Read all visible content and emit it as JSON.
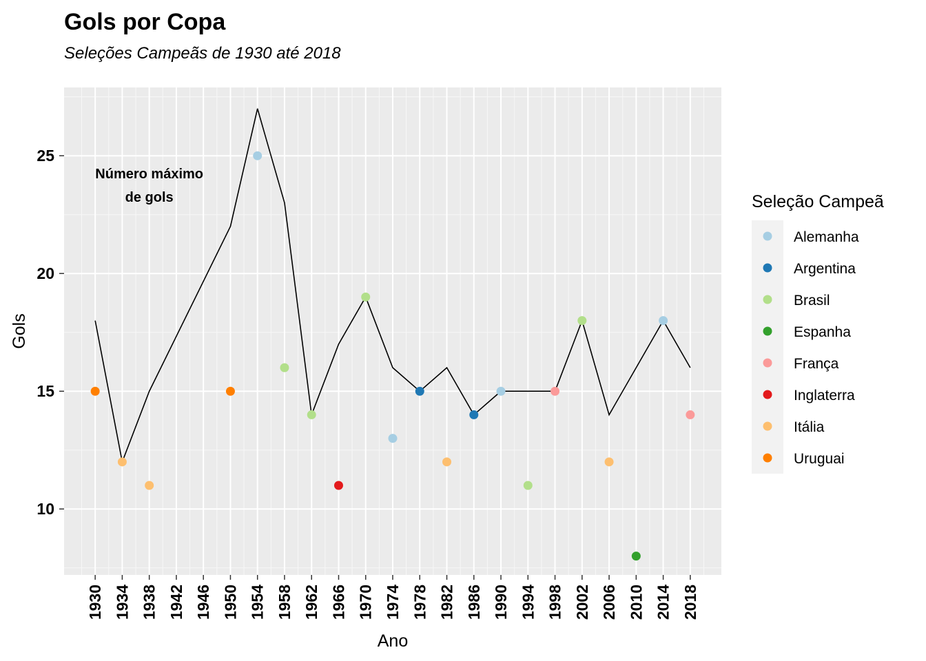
{
  "chart_data": {
    "type": "line",
    "title": "Gols por Copa",
    "subtitle": "Seleções Campeãs de 1930 até 2018",
    "xlabel": "Ano",
    "ylabel": "Gols",
    "x": [
      1930,
      1934,
      1938,
      1950,
      1954,
      1958,
      1962,
      1966,
      1970,
      1974,
      1978,
      1982,
      1986,
      1990,
      1994,
      1998,
      2002,
      2006,
      2010,
      2014,
      2018
    ],
    "x_ticks": [
      "1930",
      "1934",
      "1938",
      "1942",
      "1946",
      "1950",
      "1954",
      "1958",
      "1962",
      "1966",
      "1970",
      "1974",
      "1978",
      "1982",
      "1986",
      "1990",
      "1994",
      "1998",
      "2002",
      "2006",
      "2010",
      "2014",
      "2018"
    ],
    "y_ticks": [
      "10",
      "15",
      "20",
      "25"
    ],
    "xlim": [
      1925.4,
      2022.6
    ],
    "ylim": [
      7.2,
      27.9
    ],
    "grid": true,
    "series": [
      {
        "kind": "line",
        "color": "#000000",
        "values": [
          18,
          12,
          15,
          22,
          27,
          23,
          14,
          17,
          19,
          16,
          15,
          16,
          14,
          15,
          15,
          15,
          18,
          14,
          16,
          18,
          16
        ]
      },
      {
        "kind": "points",
        "values": [
          15,
          12,
          11,
          15,
          25,
          16,
          14,
          11,
          19,
          13,
          15,
          12,
          14,
          15,
          11,
          15,
          18,
          12,
          8,
          18,
          14
        ],
        "champions": [
          "Uruguai",
          "Itália",
          "Itália",
          "Uruguai",
          "Alemanha",
          "Brasil",
          "Brasil",
          "Inglaterra",
          "Brasil",
          "Alemanha",
          "Argentina",
          "Itália",
          "Argentina",
          "Alemanha",
          "Brasil",
          "França",
          "Brasil",
          "Itália",
          "Espanha",
          "Alemanha",
          "França"
        ]
      }
    ],
    "annotation": {
      "lines": [
        "Número máximo",
        "de gols"
      ],
      "x": 1938,
      "y": 23.8
    },
    "legend": {
      "title": "Seleção Campeã",
      "position": "right",
      "entries": [
        {
          "label": "Alemanha",
          "color": "#A6CEE3"
        },
        {
          "label": "Argentina",
          "color": "#1F78B4"
        },
        {
          "label": "Brasil",
          "color": "#B2DF8A"
        },
        {
          "label": "Espanha",
          "color": "#33A02C"
        },
        {
          "label": "França",
          "color": "#FB9A99"
        },
        {
          "label": "Inglaterra",
          "color": "#E31A1C"
        },
        {
          "label": "Itália",
          "color": "#FDBF6F"
        },
        {
          "label": "Uruguai",
          "color": "#FF7F00"
        }
      ]
    }
  }
}
